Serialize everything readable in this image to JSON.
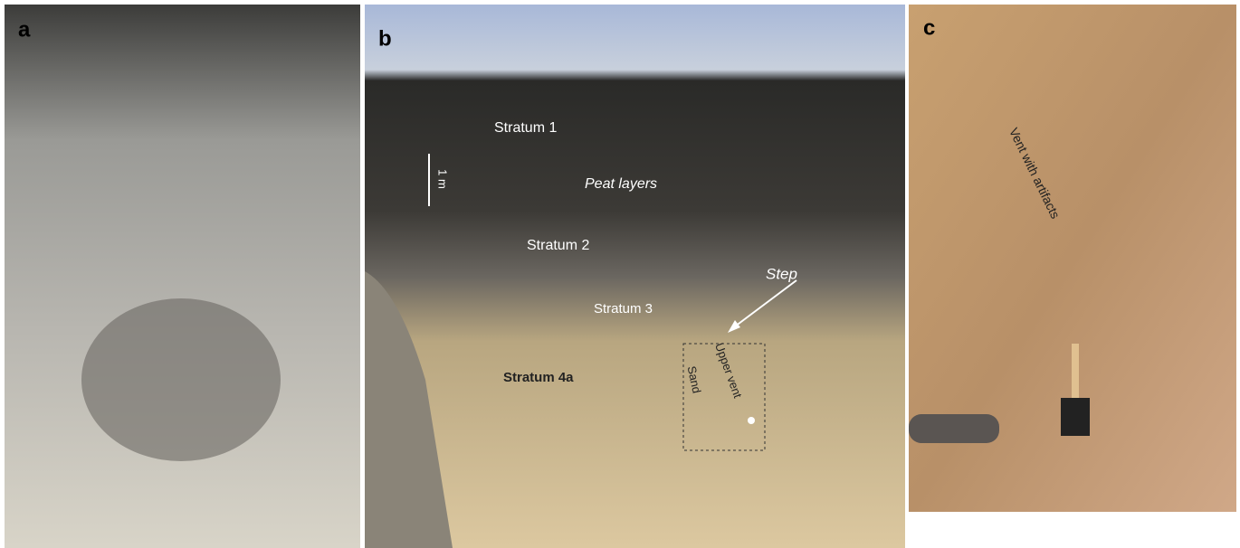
{
  "panels": [
    {
      "label": "a"
    },
    {
      "label": "b",
      "annotations": [
        "Stratum 1",
        "Peat layers",
        "1 m",
        "Stratum 2",
        "Step",
        "Stratum 3",
        "Stratum 4a",
        "Sand",
        "Upper vent"
      ]
    },
    {
      "label": "c",
      "annotations": [
        "Vent with artifacts"
      ]
    }
  ]
}
